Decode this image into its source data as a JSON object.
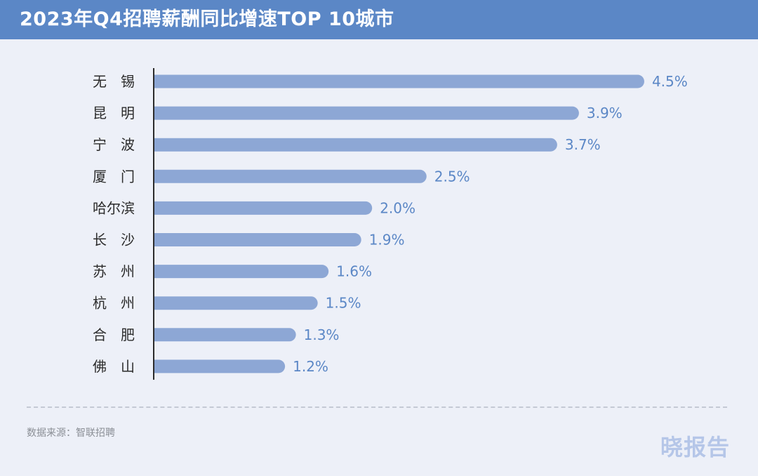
{
  "header": {
    "title": "2023年Q4招聘薪酬同比增速TOP 10城市"
  },
  "footer": {
    "source": "数据来源：智联招聘",
    "logo_text": "晓报告"
  },
  "colors": {
    "header_bg": "#5b87c6",
    "bar": "#8da7d5",
    "value_label": "#5b87c6",
    "category_label": "#2b2b2b"
  },
  "chart_data": {
    "type": "bar",
    "orientation": "horizontal",
    "categories": [
      "无锡",
      "昆明",
      "宁波",
      "厦门",
      "哈尔滨",
      "长沙",
      "苏州",
      "杭州",
      "合肥",
      "佛山"
    ],
    "category_labels": [
      "无　锡",
      "昆　明",
      "宁　波",
      "厦　门",
      "哈尔滨",
      "长　沙",
      "苏　州",
      "杭　州",
      "合　肥",
      "佛　山"
    ],
    "values": [
      4.5,
      3.9,
      3.7,
      2.5,
      2.0,
      1.9,
      1.6,
      1.5,
      1.3,
      1.2
    ],
    "data_labels": [
      "4.5%",
      "3.9%",
      "3.7%",
      "2.5%",
      "2.0%",
      "1.9%",
      "1.6%",
      "1.5%",
      "1.3%",
      "1.2%"
    ],
    "unit": "%",
    "title": "2023年Q4招聘薪酬同比增速TOP 10城市",
    "xlabel": "",
    "ylabel": "",
    "grid": false,
    "legend": "none"
  }
}
